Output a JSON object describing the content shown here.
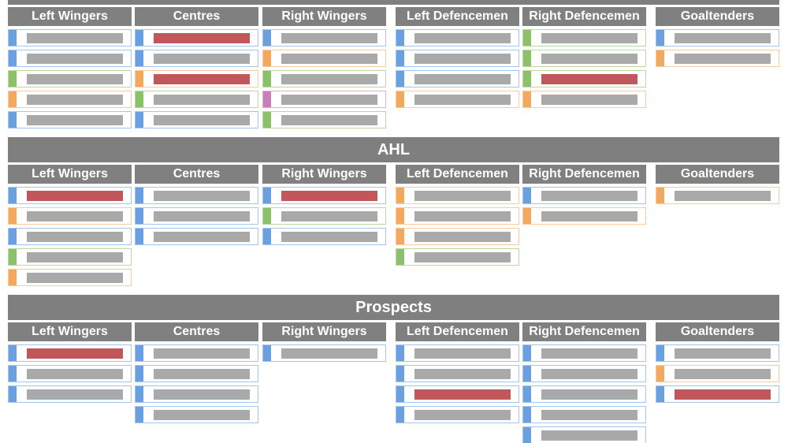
{
  "sections": [
    {
      "columns": [
        {
          "header": "Left Wingers",
          "cards": [
            {
              "accent": "#6a9fe0",
              "bar": "#a9a9a9"
            },
            {
              "accent": "#6a9fe0",
              "bar": "#a9a9a9"
            },
            {
              "accent": "#8cc06a",
              "bar": "#a9a9a9"
            },
            {
              "accent": "#f3a860",
              "bar": "#a9a9a9"
            },
            {
              "accent": "#6a9fe0",
              "bar": "#a9a9a9"
            }
          ]
        },
        {
          "header": "Centres",
          "cards": [
            {
              "accent": "#6a9fe0",
              "bar": "#c0575b"
            },
            {
              "accent": "#6a9fe0",
              "bar": "#a9a9a9"
            },
            {
              "accent": "#f3a860",
              "bar": "#c0575b"
            },
            {
              "accent": "#8cc06a",
              "bar": "#a9a9a9"
            },
            {
              "accent": "#6a9fe0",
              "bar": "#a9a9a9"
            }
          ]
        },
        {
          "header": "Right Wingers",
          "cards": [
            {
              "accent": "#6a9fe0",
              "bar": "#a9a9a9"
            },
            {
              "accent": "#f3a860",
              "bar": "#a9a9a9"
            },
            {
              "accent": "#8cc06a",
              "bar": "#a9a9a9"
            },
            {
              "accent": "#c77fb5",
              "bar": "#a9a9a9"
            },
            {
              "accent": "#8cc06a",
              "bar": "#a9a9a9"
            }
          ]
        },
        {
          "header": "Left Defencemen",
          "cards": [
            {
              "accent": "#6a9fe0",
              "bar": "#a9a9a9"
            },
            {
              "accent": "#6a9fe0",
              "bar": "#a9a9a9"
            },
            {
              "accent": "#6a9fe0",
              "bar": "#a9a9a9"
            },
            {
              "accent": "#f3a860",
              "bar": "#a9a9a9"
            }
          ]
        },
        {
          "header": "Right Defencemen",
          "cards": [
            {
              "accent": "#8cc06a",
              "bar": "#a9a9a9"
            },
            {
              "accent": "#8cc06a",
              "bar": "#a9a9a9"
            },
            {
              "accent": "#8cc06a",
              "bar": "#c0575b"
            },
            {
              "accent": "#f3a860",
              "bar": "#a9a9a9"
            }
          ]
        },
        {
          "header": "Goaltenders",
          "cards": [
            {
              "accent": "#6a9fe0",
              "bar": "#a9a9a9"
            },
            {
              "accent": "#f3a860",
              "bar": "#a9a9a9"
            }
          ]
        }
      ]
    },
    {
      "title": "AHL",
      "columns": [
        {
          "header": "Left Wingers",
          "cards": [
            {
              "accent": "#6a9fe0",
              "bar": "#c0575b"
            },
            {
              "accent": "#f3a860",
              "bar": "#a9a9a9"
            },
            {
              "accent": "#6a9fe0",
              "bar": "#a9a9a9"
            },
            {
              "accent": "#8cc06a",
              "bar": "#a9a9a9"
            },
            {
              "accent": "#f3a860",
              "bar": "#a9a9a9"
            }
          ]
        },
        {
          "header": "Centres",
          "cards": [
            {
              "accent": "#6a9fe0",
              "bar": "#a9a9a9"
            },
            {
              "accent": "#6a9fe0",
              "bar": "#a9a9a9"
            },
            {
              "accent": "#6a9fe0",
              "bar": "#a9a9a9"
            }
          ]
        },
        {
          "header": "Right Wingers",
          "cards": [
            {
              "accent": "#6a9fe0",
              "bar": "#c0575b"
            },
            {
              "accent": "#8cc06a",
              "bar": "#a9a9a9"
            },
            {
              "accent": "#6a9fe0",
              "bar": "#a9a9a9"
            }
          ]
        },
        {
          "header": "Left Defencemen",
          "cards": [
            {
              "accent": "#f3a860",
              "bar": "#a9a9a9"
            },
            {
              "accent": "#f3a860",
              "bar": "#a9a9a9"
            },
            {
              "accent": "#f3a860",
              "bar": "#a9a9a9"
            },
            {
              "accent": "#8cc06a",
              "bar": "#a9a9a9"
            }
          ]
        },
        {
          "header": "Right Defencemen",
          "cards": [
            {
              "accent": "#6a9fe0",
              "bar": "#a9a9a9"
            },
            {
              "accent": "#f3a860",
              "bar": "#a9a9a9"
            }
          ]
        },
        {
          "header": "Goaltenders",
          "cards": [
            {
              "accent": "#f3a860",
              "bar": "#a9a9a9"
            }
          ]
        }
      ]
    },
    {
      "title": "Prospects",
      "columns": [
        {
          "header": "Left Wingers",
          "cards": [
            {
              "accent": "#6a9fe0",
              "bar": "#c0575b"
            },
            {
              "accent": "#6a9fe0",
              "bar": "#a9a9a9"
            },
            {
              "accent": "#6a9fe0",
              "bar": "#a9a9a9"
            }
          ]
        },
        {
          "header": "Centres",
          "cards": [
            {
              "accent": "#6a9fe0",
              "bar": "#a9a9a9"
            },
            {
              "accent": "#6a9fe0",
              "bar": "#a9a9a9"
            },
            {
              "accent": "#6a9fe0",
              "bar": "#a9a9a9"
            },
            {
              "accent": "#6a9fe0",
              "bar": "#a9a9a9"
            }
          ]
        },
        {
          "header": "Right Wingers",
          "cards": [
            {
              "accent": "#6a9fe0",
              "bar": "#a9a9a9"
            }
          ]
        },
        {
          "header": "Left Defencemen",
          "cards": [
            {
              "accent": "#6a9fe0",
              "bar": "#a9a9a9"
            },
            {
              "accent": "#6a9fe0",
              "bar": "#a9a9a9"
            },
            {
              "accent": "#6a9fe0",
              "bar": "#c0575b"
            },
            {
              "accent": "#6a9fe0",
              "bar": "#a9a9a9"
            }
          ]
        },
        {
          "header": "Right Defencemen",
          "cards": [
            {
              "accent": "#6a9fe0",
              "bar": "#a9a9a9"
            },
            {
              "accent": "#6a9fe0",
              "bar": "#a9a9a9"
            },
            {
              "accent": "#6a9fe0",
              "bar": "#a9a9a9"
            },
            {
              "accent": "#6a9fe0",
              "bar": "#a9a9a9"
            },
            {
              "accent": "#6a9fe0",
              "bar": "#a9a9a9"
            }
          ]
        },
        {
          "header": "Goaltenders",
          "cards": [
            {
              "accent": "#6a9fe0",
              "bar": "#a9a9a9"
            },
            {
              "accent": "#f3a860",
              "bar": "#a9a9a9"
            },
            {
              "accent": "#6a9fe0",
              "bar": "#c0575b"
            }
          ]
        }
      ]
    }
  ]
}
